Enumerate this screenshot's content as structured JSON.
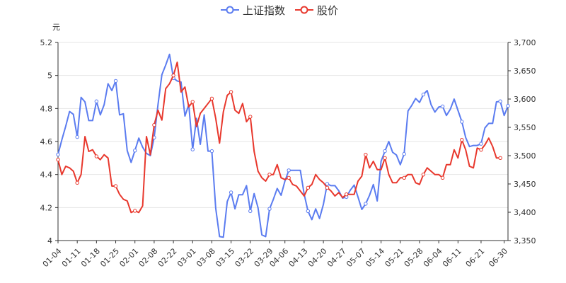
{
  "chart_data": {
    "type": "line",
    "y_left_unit": "元",
    "legend": [
      {
        "name": "上证指数",
        "color": "#5B7CF0"
      },
      {
        "name": "股价",
        "color": "#E8382D"
      }
    ],
    "left_axis": {
      "min": 4.0,
      "max": 5.2,
      "ticks": [
        "4",
        "4.2",
        "4.4",
        "4.6",
        "4.8",
        "5",
        "5.2"
      ]
    },
    "right_axis": {
      "min": 3350,
      "max": 3700,
      "ticks": [
        "3,350",
        "3,400",
        "3,450",
        "3,500",
        "3,550",
        "3,600",
        "3,650",
        "3,700"
      ]
    },
    "x_ticks": [
      "01-04",
      "01-11",
      "01-18",
      "01-25",
      "02-01",
      "02-08",
      "02-22",
      "03-01",
      "03-08",
      "03-15",
      "03-22",
      "03-29",
      "04-06",
      "04-13",
      "04-20",
      "04-27",
      "05-07",
      "05-14",
      "05-21",
      "05-28",
      "06-04",
      "06-11",
      "06-21",
      "06-30"
    ],
    "x_tick_index": [
      0,
      5,
      10,
      15,
      20,
      25,
      30,
      35,
      40,
      45,
      50,
      55,
      59,
      64,
      69,
      74,
      79,
      84,
      89,
      94,
      99,
      104,
      110,
      116
    ],
    "series": [
      {
        "name": "上证指数",
        "axis": "right",
        "color": "#5B7CF0",
        "values": [
          3502,
          3528,
          3552,
          3578,
          3573,
          3533,
          3603,
          3595,
          3562,
          3562,
          3596,
          3572,
          3590,
          3627,
          3615,
          3632,
          3572,
          3574,
          3509,
          3488,
          3509,
          3531,
          3515,
          3504,
          3500,
          3532,
          3590,
          3643,
          3660,
          3679,
          3637,
          3632,
          3630,
          3570,
          3590,
          3511,
          3566,
          3520,
          3572,
          3508,
          3508,
          3407,
          3357,
          3356,
          3419,
          3435,
          3406,
          3431,
          3431,
          3447,
          3402,
          3433,
          3408,
          3360,
          3357,
          3406,
          3423,
          3442,
          3430,
          3455,
          3474,
          3474,
          3474,
          3474,
          3432,
          3402,
          3387,
          3406,
          3389,
          3414,
          3450,
          3447,
          3447,
          3438,
          3425,
          3427,
          3439,
          3448,
          3427,
          3405,
          3415,
          3430,
          3449,
          3420,
          3490,
          3508,
          3525,
          3506,
          3501,
          3484,
          3503,
          3579,
          3589,
          3601,
          3594,
          3608,
          3615,
          3590,
          3577,
          3586,
          3587,
          3571,
          3582,
          3600,
          3580,
          3560,
          3532,
          3516,
          3518,
          3518,
          3521,
          3549,
          3557,
          3557,
          3595,
          3596,
          3571,
          3588
        ]
      },
      {
        "name": "股价",
        "axis": "left",
        "color": "#E8382D",
        "values": [
          4.49,
          4.4,
          4.45,
          4.44,
          4.42,
          4.35,
          4.4,
          4.63,
          4.54,
          4.55,
          4.51,
          4.49,
          4.52,
          4.5,
          4.33,
          4.33,
          4.28,
          4.25,
          4.24,
          4.17,
          4.18,
          4.17,
          4.21,
          4.63,
          4.52,
          4.7,
          4.79,
          4.73,
          4.92,
          4.95,
          5.0,
          5.08,
          4.9,
          4.93,
          4.81,
          4.84,
          4.69,
          4.77,
          4.8,
          4.83,
          4.86,
          4.74,
          4.59,
          4.78,
          4.88,
          4.9,
          4.79,
          4.77,
          4.83,
          4.72,
          4.75,
          4.54,
          4.42,
          4.38,
          4.36,
          4.4,
          4.4,
          4.46,
          4.38,
          4.37,
          4.38,
          4.34,
          4.33,
          4.3,
          4.27,
          4.32,
          4.34,
          4.4,
          4.37,
          4.35,
          4.32,
          4.3,
          4.27,
          4.29,
          4.26,
          4.28,
          4.28,
          4.28,
          4.36,
          4.39,
          4.52,
          4.44,
          4.48,
          4.43,
          4.43,
          4.5,
          4.4,
          4.35,
          4.35,
          4.38,
          4.38,
          4.4,
          4.4,
          4.35,
          4.34,
          4.4,
          4.44,
          4.42,
          4.4,
          4.4,
          4.38,
          4.46,
          4.46,
          4.55,
          4.5,
          4.61,
          4.55,
          4.45,
          4.44,
          4.56,
          4.55,
          4.58,
          4.62,
          4.57,
          4.5,
          4.5
        ]
      }
    ]
  }
}
